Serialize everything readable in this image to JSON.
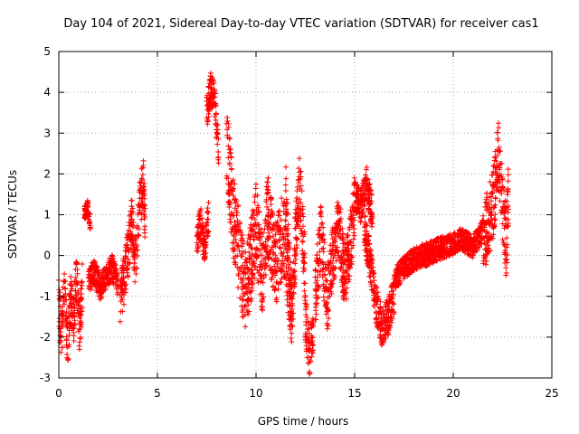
{
  "chart_data": {
    "type": "scatter",
    "title": "Day 104 of 2021, Sidereal Day-to-day VTEC variation (SDTVAR) for receiver cas1",
    "xlabel": "GPS time / hours",
    "ylabel": "SDTVAR / TECUs",
    "xlim": [
      0,
      25
    ],
    "ylim": [
      -3,
      5
    ],
    "xticks": [
      0,
      5,
      10,
      15,
      20,
      25
    ],
    "yticks": [
      -3,
      -2,
      -1,
      0,
      1,
      2,
      3,
      4,
      5
    ],
    "grid": true,
    "marker": "+",
    "series_color": "#ff0000",
    "segments": [
      {
        "x": [
          0.0,
          0.15,
          0.3,
          0.45,
          0.6,
          0.75,
          0.9,
          1.05,
          1.2
        ],
        "y": [
          -1.2,
          -2.0,
          -0.6,
          -2.3,
          -1.0,
          -1.6,
          -0.5,
          -1.8,
          -0.7
        ],
        "spread": 0.8
      },
      {
        "x": [
          1.3,
          1.45,
          1.6
        ],
        "y": [
          1.0,
          1.2,
          0.8
        ],
        "spread": 0.25
      },
      {
        "x": [
          1.5,
          1.8,
          2.1,
          2.4,
          2.7,
          3.0
        ],
        "y": [
          -0.6,
          -0.4,
          -0.8,
          -0.5,
          -0.3,
          -0.7
        ],
        "spread": 0.4
      },
      {
        "x": [
          3.1,
          3.3,
          3.5,
          3.7,
          3.9,
          4.1,
          4.3,
          4.4
        ],
        "y": [
          -1.2,
          -0.6,
          0.0,
          0.8,
          -0.3,
          1.2,
          1.8,
          0.5
        ],
        "spread": 0.8
      },
      {
        "x": [
          7.0,
          7.2,
          7.4,
          7.6
        ],
        "y": [
          0.4,
          0.8,
          0.2,
          1.0
        ],
        "spread": 0.5
      },
      {
        "x": [
          7.5,
          7.7,
          7.9,
          8.1
        ],
        "y": [
          3.5,
          4.1,
          3.8,
          2.6
        ],
        "spread": 0.5
      },
      {
        "x": [
          8.5,
          8.8,
          9.1,
          9.4,
          9.7,
          10.0,
          10.3,
          10.6,
          11.0,
          11.4,
          11.8
        ],
        "y": [
          2.8,
          1.2,
          0.2,
          -0.8,
          -0.3,
          0.8,
          -0.5,
          1.0,
          -0.2,
          0.6,
          -1.2
        ],
        "spread": 1.3
      },
      {
        "x": [
          11.5,
          11.8,
          12.0,
          12.2,
          12.5
        ],
        "y": [
          1.5,
          -1.5,
          0.3,
          1.8,
          -0.5
        ],
        "spread": 1.0
      },
      {
        "x": [
          12.5,
          12.7,
          12.9
        ],
        "y": [
          -1.5,
          -2.4,
          -2.0
        ],
        "spread": 0.7
      },
      {
        "x": [
          13.0,
          13.3,
          13.6,
          13.9,
          14.2,
          14.5,
          14.8,
          15.0
        ],
        "y": [
          -1.0,
          0.5,
          -1.2,
          0.0,
          0.8,
          -0.6,
          0.4,
          1.2
        ],
        "spread": 1.0
      },
      {
        "x": [
          15.0,
          15.3,
          15.6,
          15.9
        ],
        "y": [
          1.5,
          1.2,
          1.8,
          1.0
        ],
        "spread": 0.5
      },
      {
        "x": [
          15.5,
          15.8,
          16.1,
          16.4,
          16.7,
          17.0
        ],
        "y": [
          0.6,
          -0.2,
          -1.2,
          -1.8,
          -1.5,
          -1.0
        ],
        "spread": 0.6
      },
      {
        "x": [
          17.0,
          17.5,
          18.0,
          18.5,
          19.0,
          19.5,
          20.0,
          20.5,
          21.0,
          21.5
        ],
        "y": [
          -0.6,
          -0.3,
          -0.1,
          0.0,
          0.1,
          0.2,
          0.3,
          0.4,
          0.2,
          0.6
        ],
        "spread": 0.35
      },
      {
        "x": [
          21.5,
          21.8,
          22.1,
          22.3,
          22.5,
          22.7,
          22.8
        ],
        "y": [
          0.5,
          0.8,
          1.5,
          2.6,
          1.2,
          0.2,
          1.5
        ],
        "spread": 1.1
      }
    ]
  }
}
